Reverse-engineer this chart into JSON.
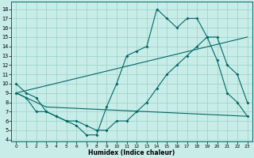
{
  "xlabel": "Humidex (Indice chaleur)",
  "xlim": [
    -0.5,
    23.5
  ],
  "ylim": [
    3.8,
    18.8
  ],
  "yticks": [
    4,
    5,
    6,
    7,
    8,
    9,
    10,
    11,
    12,
    13,
    14,
    15,
    16,
    17,
    18
  ],
  "xticks": [
    0,
    1,
    2,
    3,
    4,
    5,
    6,
    7,
    8,
    9,
    10,
    11,
    12,
    13,
    14,
    15,
    16,
    17,
    18,
    19,
    20,
    21,
    22,
    23
  ],
  "bg_color": "#c8ede8",
  "grid_color": "#a0d4cc",
  "line_color": "#006666",
  "series": [
    {
      "x": [
        0,
        1,
        2,
        3,
        4,
        5,
        6,
        7,
        8,
        9,
        10,
        11,
        12,
        13,
        14,
        15,
        16,
        17,
        18,
        19,
        20,
        21,
        22,
        23
      ],
      "y": [
        10,
        9,
        8.5,
        7,
        6.5,
        6,
        5.5,
        4.5,
        4.5,
        7.5,
        10,
        13,
        13.5,
        14,
        18,
        17,
        16,
        17,
        17,
        15,
        12.5,
        9,
        8,
        6.5
      ],
      "marker": true
    },
    {
      "x": [
        0,
        1,
        2,
        3,
        4,
        5,
        6,
        7,
        8,
        9,
        10,
        11,
        12,
        13,
        14,
        15,
        16,
        17,
        18,
        19,
        20,
        21,
        22,
        23
      ],
      "y": [
        9,
        8.5,
        7,
        7,
        6.5,
        6,
        6,
        5.5,
        5,
        5,
        6,
        6,
        7,
        8,
        9.5,
        11,
        12,
        13,
        14,
        15,
        15,
        12,
        11,
        8
      ],
      "marker": true
    },
    {
      "x": [
        0,
        23
      ],
      "y": [
        9,
        15
      ],
      "marker": false
    },
    {
      "x": [
        0,
        3,
        23
      ],
      "y": [
        9,
        7.5,
        6.5
      ],
      "marker": false
    }
  ]
}
